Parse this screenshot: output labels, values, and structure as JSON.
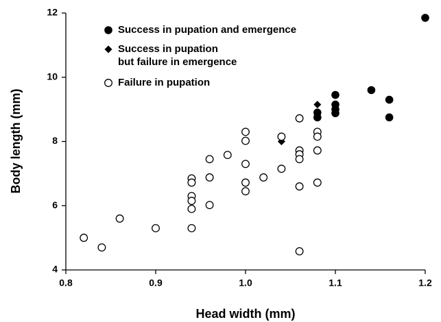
{
  "chart_data": {
    "type": "scatter",
    "xlabel": "Head width (mm)",
    "ylabel": "Body length (mm)",
    "xlim": [
      0.8,
      1.2
    ],
    "ylim": [
      4,
      12
    ],
    "xticks": [
      0.8,
      0.9,
      {
        "value": 1,
        "label": "1.0"
      },
      1.1,
      1.2
    ],
    "yticks": [
      4,
      6,
      8,
      10,
      12
    ],
    "grid": false,
    "legend": "upper left",
    "series": [
      {
        "name": "Success in pupation and emergence",
        "color": "#000000",
        "marker": "circle-filled",
        "x": [
          1.2,
          1.14,
          1.16,
          1.16,
          1.1,
          1.1,
          1.1,
          1.1,
          1.08,
          1.08
        ],
        "y": [
          11.85,
          9.6,
          9.3,
          8.75,
          9.45,
          9.15,
          9.0,
          8.88,
          8.9,
          8.75
        ]
      },
      {
        "name": "Success in pupation\nbut failure in emergence",
        "color": "#000000",
        "marker": "diamond",
        "x": [
          1.08,
          1.04
        ],
        "y": [
          9.15,
          8.0
        ]
      },
      {
        "name": "Failure in pupation",
        "color": "#000000",
        "marker": "circle-open",
        "x": [
          0.82,
          0.84,
          0.86,
          0.9,
          0.94,
          0.94,
          0.94,
          0.94,
          0.94,
          0.94,
          0.96,
          0.96,
          0.96,
          0.98,
          1.0,
          1.0,
          1.0,
          1.0,
          1.0,
          1.02,
          1.04,
          1.04,
          1.06,
          1.06,
          1.06,
          1.06,
          1.06,
          1.06,
          1.08,
          1.08,
          1.08,
          1.08
        ],
        "y": [
          5.0,
          4.7,
          5.6,
          5.3,
          6.85,
          6.72,
          6.3,
          6.15,
          5.9,
          5.3,
          7.45,
          6.88,
          6.02,
          7.58,
          8.3,
          8.02,
          7.3,
          6.72,
          6.45,
          6.88,
          8.15,
          7.15,
          8.72,
          7.72,
          7.6,
          7.45,
          6.6,
          4.58,
          8.3,
          8.15,
          7.72,
          6.72
        ]
      }
    ]
  }
}
